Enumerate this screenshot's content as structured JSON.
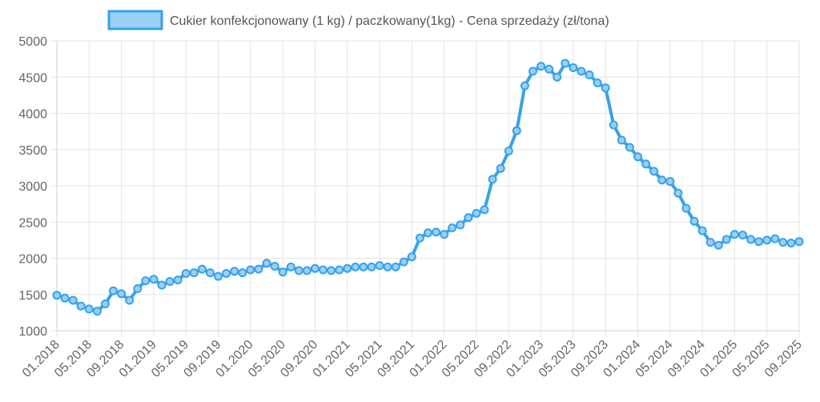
{
  "chart_data": {
    "type": "line",
    "legend": "Cukier konfekcjonowany (1 kg) / paczkowany(1kg) - Cena sprzedaży (zł/tona)",
    "legend_position": "top",
    "grid": true,
    "ylim": [
      1000,
      5000
    ],
    "yticks": [
      1000,
      1500,
      2000,
      2500,
      3000,
      3500,
      4000,
      4500,
      5000
    ],
    "xticks": [
      "01.2018",
      "05.2018",
      "09.2018",
      "01.2019",
      "05.2019",
      "09.2019",
      "01.2020",
      "05.2020",
      "09.2020",
      "01.2021",
      "05.2021",
      "09.2021",
      "01.2022",
      "05.2022",
      "09.2022",
      "01.2023",
      "05.2023",
      "09.2023",
      "01.2024",
      "05.2024",
      "09.2024",
      "01.2025",
      "05.2025",
      "09.2025"
    ],
    "x_start": "01.2018",
    "x_end": "09.2025",
    "line_color": "#36a2eb",
    "fill_color": "#9ad0f5",
    "series": [
      {
        "values": [
          1490,
          1450,
          1420,
          1340,
          1300,
          1270,
          1370,
          1550,
          1510,
          1420,
          1580,
          1690,
          1710,
          1630,
          1680,
          1700,
          1790,
          1800,
          1850,
          1800,
          1750,
          1790,
          1820,
          1800,
          1840,
          1850,
          1930,
          1890,
          1810,
          1880,
          1830,
          1830,
          1860,
          1840,
          1830,
          1840,
          1860,
          1880,
          1880,
          1880,
          1900,
          1880,
          1880,
          1950,
          2020,
          2280,
          2350,
          2360,
          2330,
          2420,
          2460,
          2560,
          2620,
          2670,
          3090,
          3240,
          3480,
          3760,
          4380,
          4580,
          4650,
          4610,
          4500,
          4690,
          4630,
          4580,
          4530,
          4420,
          4350,
          3840,
          3630,
          3530,
          3400,
          3300,
          3200,
          3080,
          3060,
          2900,
          2690,
          2510,
          2380,
          2220,
          2180,
          2260,
          2330,
          2320,
          2260,
          2230,
          2250,
          2270,
          2220,
          2210,
          2230
        ]
      }
    ]
  }
}
